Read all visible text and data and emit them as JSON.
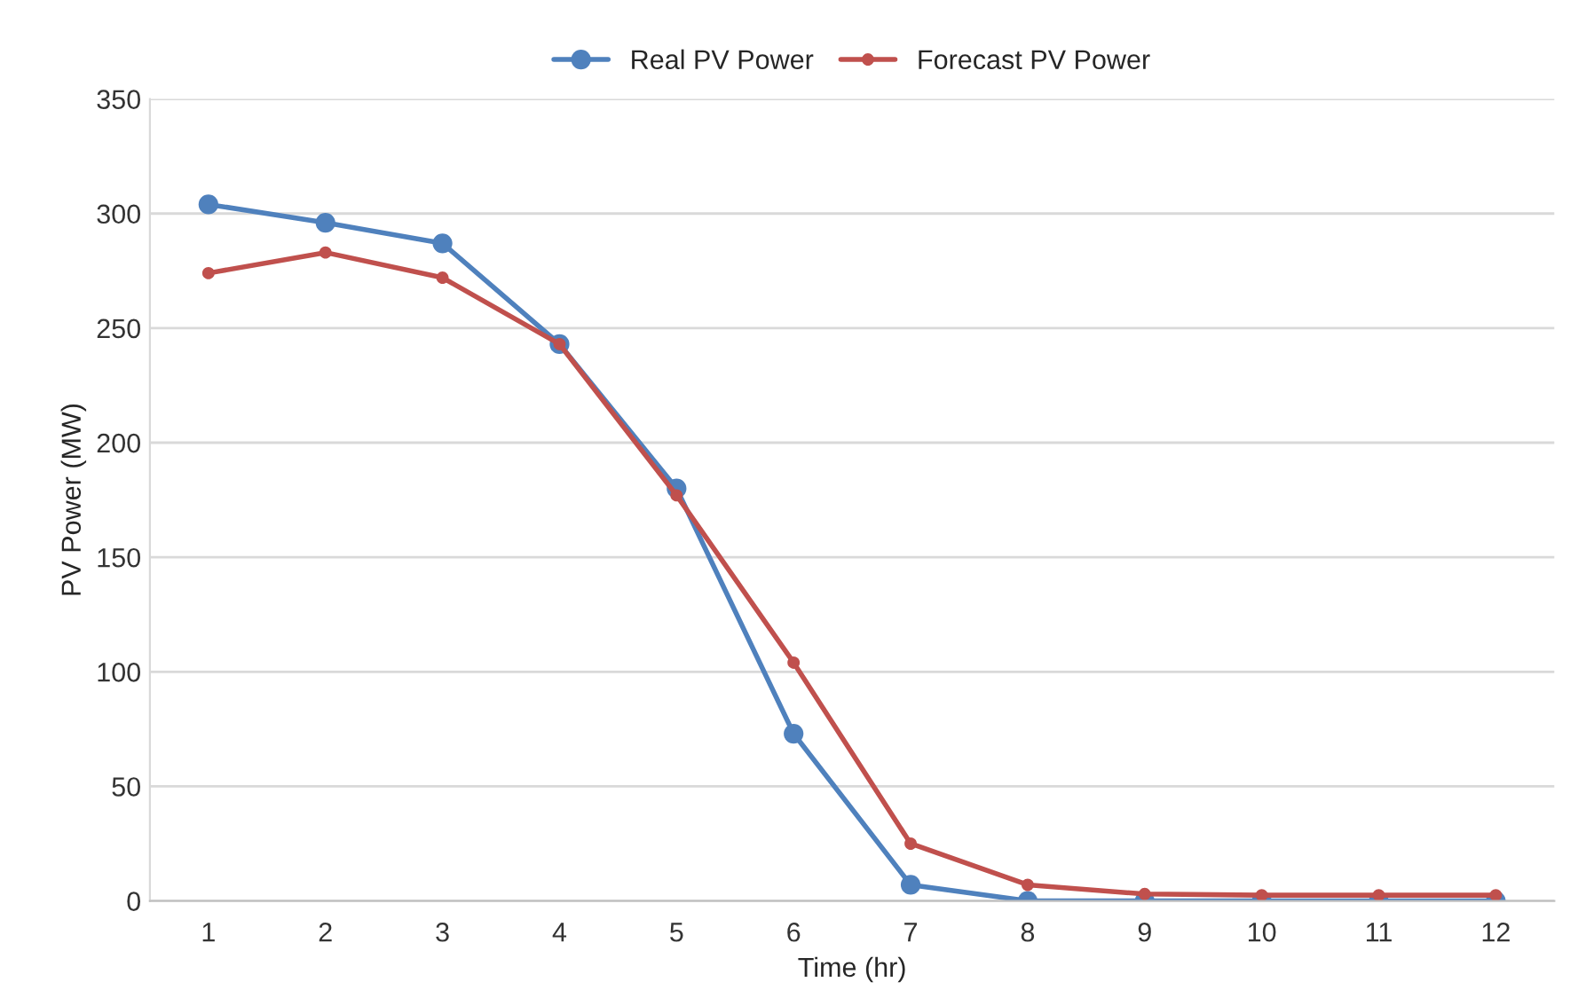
{
  "chart_data": {
    "type": "line",
    "xlabel": "Time (hr)",
    "ylabel": "PV Power (MW)",
    "categories": [
      "1",
      "2",
      "3",
      "4",
      "5",
      "6",
      "7",
      "8",
      "9",
      "10",
      "11",
      "12"
    ],
    "series": [
      {
        "name": "Real PV Power",
        "color": "#4f81bd",
        "values": [
          304,
          296,
          287,
          243,
          180,
          73,
          7,
          0,
          0,
          0,
          0,
          0
        ]
      },
      {
        "name": "Forecast PV Power",
        "color": "#c0504d",
        "values": [
          274,
          283,
          272,
          243,
          177,
          104,
          25,
          7,
          3,
          2.5,
          2.5,
          2.5
        ]
      }
    ],
    "ylim": [
      0,
      350
    ],
    "yticks": [
      0,
      50,
      100,
      150,
      200,
      250,
      300,
      350
    ],
    "grid": "y",
    "legend": "top",
    "marker": "circle",
    "line_style": "solid"
  }
}
